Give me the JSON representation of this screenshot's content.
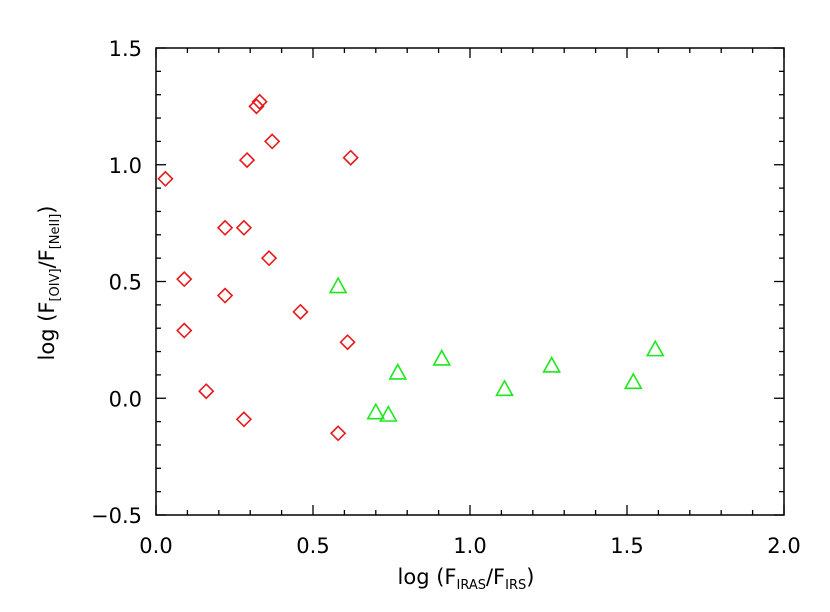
{
  "chart_data": {
    "type": "scatter",
    "title": "",
    "xlabel": {
      "prefix": "log (F",
      "sub1": "IRAS",
      "middle": "/F",
      "sub2": "IRS",
      "suffix": ")"
    },
    "ylabel": {
      "prefix": "log (F",
      "sub1": "[OIV]",
      "middle": "/F",
      "sub2": "[NeII]",
      "suffix": ")"
    },
    "xlim": [
      0.0,
      2.0
    ],
    "ylim": [
      -0.5,
      1.5
    ],
    "xticks": [
      "0.0",
      "0.5",
      "1.0",
      "1.5",
      "2.0"
    ],
    "yticks": [
      "−0.5",
      "0.0",
      "0.5",
      "1.0",
      "1.5"
    ],
    "grid": false,
    "series": [
      {
        "marker": "diamond",
        "color": "#e8191b",
        "points": [
          [
            0.03,
            0.94
          ],
          [
            0.09,
            0.51
          ],
          [
            0.09,
            0.29
          ],
          [
            0.16,
            0.03
          ],
          [
            0.22,
            0.73
          ],
          [
            0.22,
            0.44
          ],
          [
            0.28,
            0.73
          ],
          [
            0.28,
            -0.09
          ],
          [
            0.29,
            1.02
          ],
          [
            0.32,
            1.25
          ],
          [
            0.33,
            1.27
          ],
          [
            0.36,
            0.6
          ],
          [
            0.37,
            1.1
          ],
          [
            0.46,
            0.37
          ],
          [
            0.58,
            -0.15
          ],
          [
            0.61,
            0.24
          ],
          [
            0.62,
            1.03
          ]
        ]
      },
      {
        "marker": "triangle",
        "color": "#1de81d",
        "points": [
          [
            0.58,
            0.48
          ],
          [
            0.7,
            -0.06
          ],
          [
            0.74,
            -0.07
          ],
          [
            0.77,
            0.11
          ],
          [
            0.91,
            0.17
          ],
          [
            1.11,
            0.04
          ],
          [
            1.26,
            0.14
          ],
          [
            1.52,
            0.07
          ],
          [
            1.59,
            0.21
          ]
        ]
      }
    ]
  }
}
